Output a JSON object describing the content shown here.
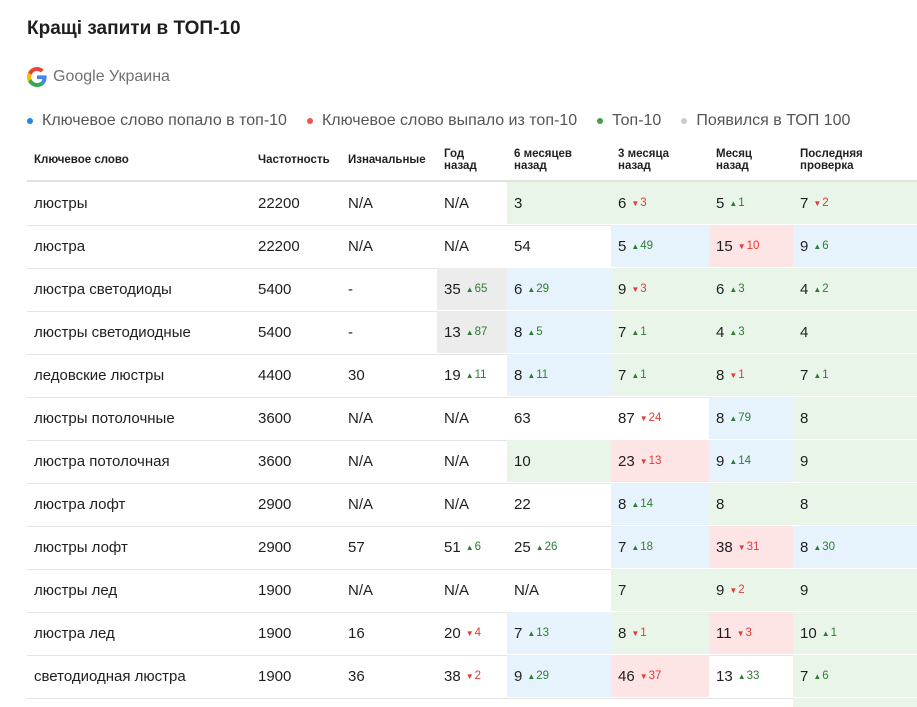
{
  "title": "Кращі запити в ТОП-10",
  "engine": {
    "name": "Google Украина",
    "icon": "google-g-icon"
  },
  "legend": [
    {
      "label": "Ключевое слово попало в топ-10",
      "color": "#1e88e5"
    },
    {
      "label": "Ключевое слово выпало из топ-10",
      "color": "#ef5350"
    },
    {
      "label": "Топ-10",
      "color": "#43a047"
    },
    {
      "label": "Появился в ТОП 100",
      "color": "#cccccc"
    }
  ],
  "columns": [
    {
      "key": "keyword",
      "label": "Ключевое слово"
    },
    {
      "key": "freq",
      "label": "Частотность"
    },
    {
      "key": "initial",
      "label": "Изначальные"
    },
    {
      "key": "year",
      "label": "Год назад"
    },
    {
      "key": "m6",
      "label": "6 месяцев назад"
    },
    {
      "key": "m3",
      "label": "3 месяца назад"
    },
    {
      "key": "m1",
      "label": "Месяц назад"
    },
    {
      "key": "last",
      "label": "Последняя проверка"
    }
  ],
  "rows": [
    {
      "keyword": "люстры",
      "freq": "22200",
      "initial": "N/A",
      "year": {
        "v": "N/A"
      },
      "m6": {
        "v": "3",
        "bg": "green"
      },
      "m3": {
        "v": "6",
        "d": "3",
        "dir": "down",
        "bg": "green"
      },
      "m1": {
        "v": "5",
        "d": "1",
        "dir": "up",
        "bg": "green"
      },
      "last": {
        "v": "7",
        "d": "2",
        "dir": "down",
        "bg": "green"
      }
    },
    {
      "keyword": "люстра",
      "freq": "22200",
      "initial": "N/A",
      "year": {
        "v": "N/A"
      },
      "m6": {
        "v": "54"
      },
      "m3": {
        "v": "5",
        "d": "49",
        "dir": "up",
        "bg": "blue"
      },
      "m1": {
        "v": "15",
        "d": "10",
        "dir": "down",
        "bg": "red"
      },
      "last": {
        "v": "9",
        "d": "6",
        "dir": "up",
        "bg": "blue"
      }
    },
    {
      "keyword": "люстра светодиоды",
      "freq": "5400",
      "initial": "-",
      "year": {
        "v": "35",
        "d": "65",
        "dir": "up",
        "bg": "gray"
      },
      "m6": {
        "v": "6",
        "d": "29",
        "dir": "up",
        "bg": "blue"
      },
      "m3": {
        "v": "9",
        "d": "3",
        "dir": "down",
        "bg": "green"
      },
      "m1": {
        "v": "6",
        "d": "3",
        "dir": "up",
        "bg": "green"
      },
      "last": {
        "v": "4",
        "d": "2",
        "dir": "up",
        "bg": "green"
      }
    },
    {
      "keyword": "люстры светодиодные",
      "freq": "5400",
      "initial": "-",
      "year": {
        "v": "13",
        "d": "87",
        "dir": "up",
        "bg": "gray"
      },
      "m6": {
        "v": "8",
        "d": "5",
        "dir": "up",
        "bg": "blue"
      },
      "m3": {
        "v": "7",
        "d": "1",
        "dir": "up",
        "bg": "green"
      },
      "m1": {
        "v": "4",
        "d": "3",
        "dir": "up",
        "bg": "green"
      },
      "last": {
        "v": "4",
        "bg": "green"
      }
    },
    {
      "keyword": "ледовские люстры",
      "freq": "4400",
      "initial": "30",
      "year": {
        "v": "19",
        "d": "11",
        "dir": "up"
      },
      "m6": {
        "v": "8",
        "d": "11",
        "dir": "up",
        "bg": "blue"
      },
      "m3": {
        "v": "7",
        "d": "1",
        "dir": "up",
        "bg": "green"
      },
      "m1": {
        "v": "8",
        "d": "1",
        "dir": "down",
        "bg": "green"
      },
      "last": {
        "v": "7",
        "d": "1",
        "dir": "up",
        "bg": "green"
      }
    },
    {
      "keyword": "люстры потолочные",
      "freq": "3600",
      "initial": "N/A",
      "year": {
        "v": "N/A"
      },
      "m6": {
        "v": "63"
      },
      "m3": {
        "v": "87",
        "d": "24",
        "dir": "down"
      },
      "m1": {
        "v": "8",
        "d": "79",
        "dir": "up",
        "bg": "blue"
      },
      "last": {
        "v": "8",
        "bg": "green"
      }
    },
    {
      "keyword": "люстра потолочная",
      "freq": "3600",
      "initial": "N/A",
      "year": {
        "v": "N/A"
      },
      "m6": {
        "v": "10",
        "bg": "green"
      },
      "m3": {
        "v": "23",
        "d": "13",
        "dir": "down",
        "bg": "red"
      },
      "m1": {
        "v": "9",
        "d": "14",
        "dir": "up",
        "bg": "blue"
      },
      "last": {
        "v": "9",
        "bg": "green"
      }
    },
    {
      "keyword": "люстра лофт",
      "freq": "2900",
      "initial": "N/A",
      "year": {
        "v": "N/A"
      },
      "m6": {
        "v": "22"
      },
      "m3": {
        "v": "8",
        "d": "14",
        "dir": "up",
        "bg": "blue"
      },
      "m1": {
        "v": "8",
        "bg": "green"
      },
      "last": {
        "v": "8",
        "bg": "green"
      }
    },
    {
      "keyword": "люстры лофт",
      "freq": "2900",
      "initial": "57",
      "year": {
        "v": "51",
        "d": "6",
        "dir": "up"
      },
      "m6": {
        "v": "25",
        "d": "26",
        "dir": "up"
      },
      "m3": {
        "v": "7",
        "d": "18",
        "dir": "up",
        "bg": "blue"
      },
      "m1": {
        "v": "38",
        "d": "31",
        "dir": "down",
        "bg": "red"
      },
      "last": {
        "v": "8",
        "d": "30",
        "dir": "up",
        "bg": "blue"
      }
    },
    {
      "keyword": "люстры лед",
      "freq": "1900",
      "initial": "N/A",
      "year": {
        "v": "N/A"
      },
      "m6": {
        "v": "N/A"
      },
      "m3": {
        "v": "7",
        "bg": "green"
      },
      "m1": {
        "v": "9",
        "d": "2",
        "dir": "down",
        "bg": "green"
      },
      "last": {
        "v": "9",
        "bg": "green"
      }
    },
    {
      "keyword": "люстра лед",
      "freq": "1900",
      "initial": "16",
      "year": {
        "v": "20",
        "d": "4",
        "dir": "down"
      },
      "m6": {
        "v": "7",
        "d": "13",
        "dir": "up",
        "bg": "blue"
      },
      "m3": {
        "v": "8",
        "d": "1",
        "dir": "down",
        "bg": "green"
      },
      "m1": {
        "v": "11",
        "d": "3",
        "dir": "down",
        "bg": "red"
      },
      "last": {
        "v": "10",
        "d": "1",
        "dir": "up",
        "bg": "green"
      }
    },
    {
      "keyword": "светодиодная люстра",
      "freq": "1900",
      "initial": "36",
      "year": {
        "v": "38",
        "d": "2",
        "dir": "down"
      },
      "m6": {
        "v": "9",
        "d": "29",
        "dir": "up",
        "bg": "blue"
      },
      "m3": {
        "v": "46",
        "d": "37",
        "dir": "down",
        "bg": "red"
      },
      "m1": {
        "v": "13",
        "d": "33",
        "dir": "up"
      },
      "last": {
        "v": "7",
        "d": "6",
        "dir": "up",
        "bg": "green"
      }
    }
  ]
}
